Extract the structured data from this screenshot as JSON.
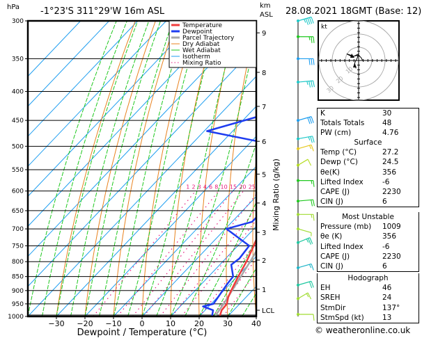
{
  "header": {
    "pressure_unit": "hPa",
    "location": "-1°23'S  311°29'W  16m  ASL",
    "height_unit_line1": "km",
    "height_unit_line2": "ASL",
    "datetime": "28.08.2021  18GMT  (Base: 12)"
  },
  "chart_data": {
    "type": "skew-t",
    "xlabel": "Dewpoint / Temperature (°C)",
    "ylabel_left": "hPa",
    "ylabel_right": "Mixing Ratio (g/kg)",
    "x_ticks": [
      -30,
      -20,
      -10,
      0,
      10,
      20,
      30,
      40
    ],
    "xlim": [
      -40,
      40
    ],
    "ylim": [
      1000,
      300
    ],
    "pressure_ticks": [
      300,
      350,
      400,
      450,
      500,
      550,
      600,
      650,
      700,
      750,
      800,
      850,
      900,
      950,
      1000
    ],
    "km_ticks": [
      {
        "label": "9",
        "p": 315
      },
      {
        "label": "8",
        "p": 370
      },
      {
        "label": "7",
        "p": 425
      },
      {
        "label": "6",
        "p": 490
      },
      {
        "label": "5",
        "p": 560
      },
      {
        "label": "4",
        "p": 630
      },
      {
        "label": "3",
        "p": 710
      },
      {
        "label": "2",
        "p": 795
      },
      {
        "label": "1",
        "p": 895
      },
      {
        "label": "LCL",
        "p": 975
      }
    ],
    "mixing_ratio_labels": [
      "1",
      "2",
      "3",
      "4",
      "6",
      "8",
      "10",
      "15",
      "20",
      "25"
    ],
    "mixing_ratio_values": [
      1,
      2,
      3,
      4,
      6,
      8,
      10,
      15,
      20,
      25
    ],
    "legend": [
      {
        "label": "Temperature",
        "color": "#f03c3c",
        "style": "thick"
      },
      {
        "label": "Dewpoint",
        "color": "#1e3cf0",
        "style": "thick"
      },
      {
        "label": "Parcel Trajectory",
        "color": "#a8a8a8",
        "style": "thick"
      },
      {
        "label": "Dry Adiabat",
        "color": "#e8821e",
        "style": "thin"
      },
      {
        "label": "Wet Adiabat",
        "color": "#1ec81e",
        "style": "thin"
      },
      {
        "label": "Isotherm",
        "color": "#1e9ef0",
        "style": "thin"
      },
      {
        "label": "Mixing Ratio",
        "color": "#e6147a",
        "style": "dotted"
      }
    ],
    "legend_position": "top-right",
    "series": [
      {
        "name": "Temperature",
        "points": [
          [
            1000,
            27.2
          ],
          [
            975,
            25.8
          ],
          [
            950,
            25.5
          ],
          [
            925,
            23.8
          ],
          [
            900,
            22.6
          ],
          [
            850,
            20.4
          ],
          [
            800,
            18.3
          ],
          [
            750,
            15.6
          ],
          [
            700,
            12.4
          ],
          [
            650,
            9.4
          ],
          [
            625,
            8.9
          ],
          [
            600,
            6.2
          ],
          [
            550,
            1.8
          ],
          [
            525,
            0.8
          ],
          [
            500,
            -0.8
          ],
          [
            475,
            -3.8
          ],
          [
            450,
            -6.4
          ],
          [
            425,
            -9.4
          ],
          [
            400,
            -12.6
          ],
          [
            350,
            -19.4
          ],
          [
            325,
            -23.8
          ],
          [
            305,
            -25.6
          ],
          [
            300,
            -26
          ]
        ]
      },
      {
        "name": "Dewpoint",
        "points": [
          [
            1000,
            24.5
          ],
          [
            975,
            22.8
          ],
          [
            960,
            18.0
          ],
          [
            950,
            20.8
          ],
          [
            900,
            19.6
          ],
          [
            875,
            19.0
          ],
          [
            850,
            18.6
          ],
          [
            810,
            14.0
          ],
          [
            790,
            14.8
          ],
          [
            750,
            14.0
          ],
          [
            700,
            0.4
          ],
          [
            680,
            7.0
          ],
          [
            625,
            7.2
          ],
          [
            600,
            3.4
          ],
          [
            550,
            1.4
          ],
          [
            535,
            -2.6
          ],
          [
            525,
            0.8
          ],
          [
            505,
            -2.4
          ],
          [
            495,
            -12.6
          ],
          [
            470,
            -39.0
          ],
          [
            440,
            -24.5
          ],
          [
            400,
            -34.0
          ],
          [
            350,
            -33.4
          ],
          [
            310,
            -32.6
          ],
          [
            300,
            -42.0
          ]
        ]
      },
      {
        "name": "Parcel Trajectory",
        "points": [
          [
            1000,
            25.5
          ],
          [
            950,
            24.4
          ],
          [
            900,
            22.9
          ],
          [
            850,
            21.3
          ],
          [
            800,
            19.6
          ],
          [
            750,
            17.6
          ],
          [
            700,
            15.5
          ],
          [
            650,
            13.2
          ],
          [
            600,
            10.6
          ],
          [
            550,
            7.6
          ],
          [
            500,
            4.2
          ],
          [
            450,
            0.2
          ],
          [
            400,
            -4.6
          ],
          [
            350,
            -10.4
          ],
          [
            320,
            -14.4
          ]
        ]
      }
    ],
    "wind_barbs": [
      {
        "p": 300,
        "dir": 300,
        "spd": 45,
        "color": "#1ec8c8"
      },
      {
        "p": 320,
        "dir": 270,
        "spd": 25,
        "color": "#1ec81e"
      },
      {
        "p": 350,
        "dir": 270,
        "spd": 30,
        "color": "#1e9ef0"
      },
      {
        "p": 385,
        "dir": 280,
        "spd": 35,
        "color": "#1ec8c8"
      },
      {
        "p": 450,
        "dir": 300,
        "spd": 30,
        "color": "#1e9ef0"
      },
      {
        "p": 485,
        "dir": 290,
        "spd": 25,
        "color": "#1ec8c8"
      },
      {
        "p": 505,
        "dir": 300,
        "spd": 15,
        "color": "#e6c81e"
      },
      {
        "p": 540,
        "dir": 320,
        "spd": 10,
        "color": "#b4dc1e"
      },
      {
        "p": 575,
        "dir": 270,
        "spd": 15,
        "color": "#1ec81e"
      },
      {
        "p": 625,
        "dir": 280,
        "spd": 20,
        "color": "#1ec81e"
      },
      {
        "p": 660,
        "dir": 270,
        "spd": 15,
        "color": "#a0dc32"
      },
      {
        "p": 700,
        "dir": 240,
        "spd": 5,
        "color": "#a0dc32"
      },
      {
        "p": 740,
        "dir": 310,
        "spd": 25,
        "color": "#1ec8a0"
      },
      {
        "p": 820,
        "dir": 300,
        "spd": 15,
        "color": "#1eb4c8"
      },
      {
        "p": 880,
        "dir": 300,
        "spd": 20,
        "color": "#1ec8a0"
      },
      {
        "p": 930,
        "dir": 320,
        "spd": 15,
        "color": "#a0dc32"
      },
      {
        "p": 1000,
        "dir": 270,
        "spd": 10,
        "color": "#a0dc32"
      }
    ],
    "hodograph": {
      "unit_label": "kt",
      "ring_labels": [
        "10",
        "20",
        "30"
      ],
      "points": [
        [
          -2,
          -6
        ],
        [
          -3,
          -2
        ],
        [
          -1,
          2
        ],
        [
          0,
          5
        ],
        [
          -4,
          3
        ],
        [
          -6,
          4
        ],
        [
          -9,
          5
        ],
        [
          -5,
          3
        ],
        [
          0,
          4
        ],
        [
          2,
          2
        ],
        [
          3,
          0
        ]
      ]
    }
  },
  "indices": {
    "top": [
      {
        "label": "K",
        "value": "30"
      },
      {
        "label": "Totals Totals",
        "value": "48"
      },
      {
        "label": "PW (cm)",
        "value": "4.76"
      }
    ],
    "surface": {
      "title": "Surface",
      "rows": [
        {
          "label": "Temp (°C)",
          "value": "27.2"
        },
        {
          "label": "Dewp (°C)",
          "value": "24.5"
        },
        {
          "label": "θe(K)",
          "value": "356"
        },
        {
          "label": "Lifted Index",
          "value": "-6"
        },
        {
          "label": "CAPE (J)",
          "value": "2230"
        },
        {
          "label": "CIN (J)",
          "value": "6"
        }
      ]
    },
    "most_unstable": {
      "title": "Most Unstable",
      "rows": [
        {
          "label": "Pressure (mb)",
          "value": "1009"
        },
        {
          "label": "θe (K)",
          "value": "356"
        },
        {
          "label": "Lifted Index",
          "value": "-6"
        },
        {
          "label": "CAPE (J)",
          "value": "2230"
        },
        {
          "label": "CIN (J)",
          "value": "6"
        }
      ]
    },
    "hodograph": {
      "title": "Hodograph",
      "rows": [
        {
          "label": "EH",
          "value": "46"
        },
        {
          "label": "SREH",
          "value": "24"
        },
        {
          "label": "StmDir",
          "value": "137°"
        },
        {
          "label": "StmSpd (kt)",
          "value": "13"
        }
      ]
    }
  },
  "footer": {
    "copyright": "© weatheronline.co.uk"
  }
}
